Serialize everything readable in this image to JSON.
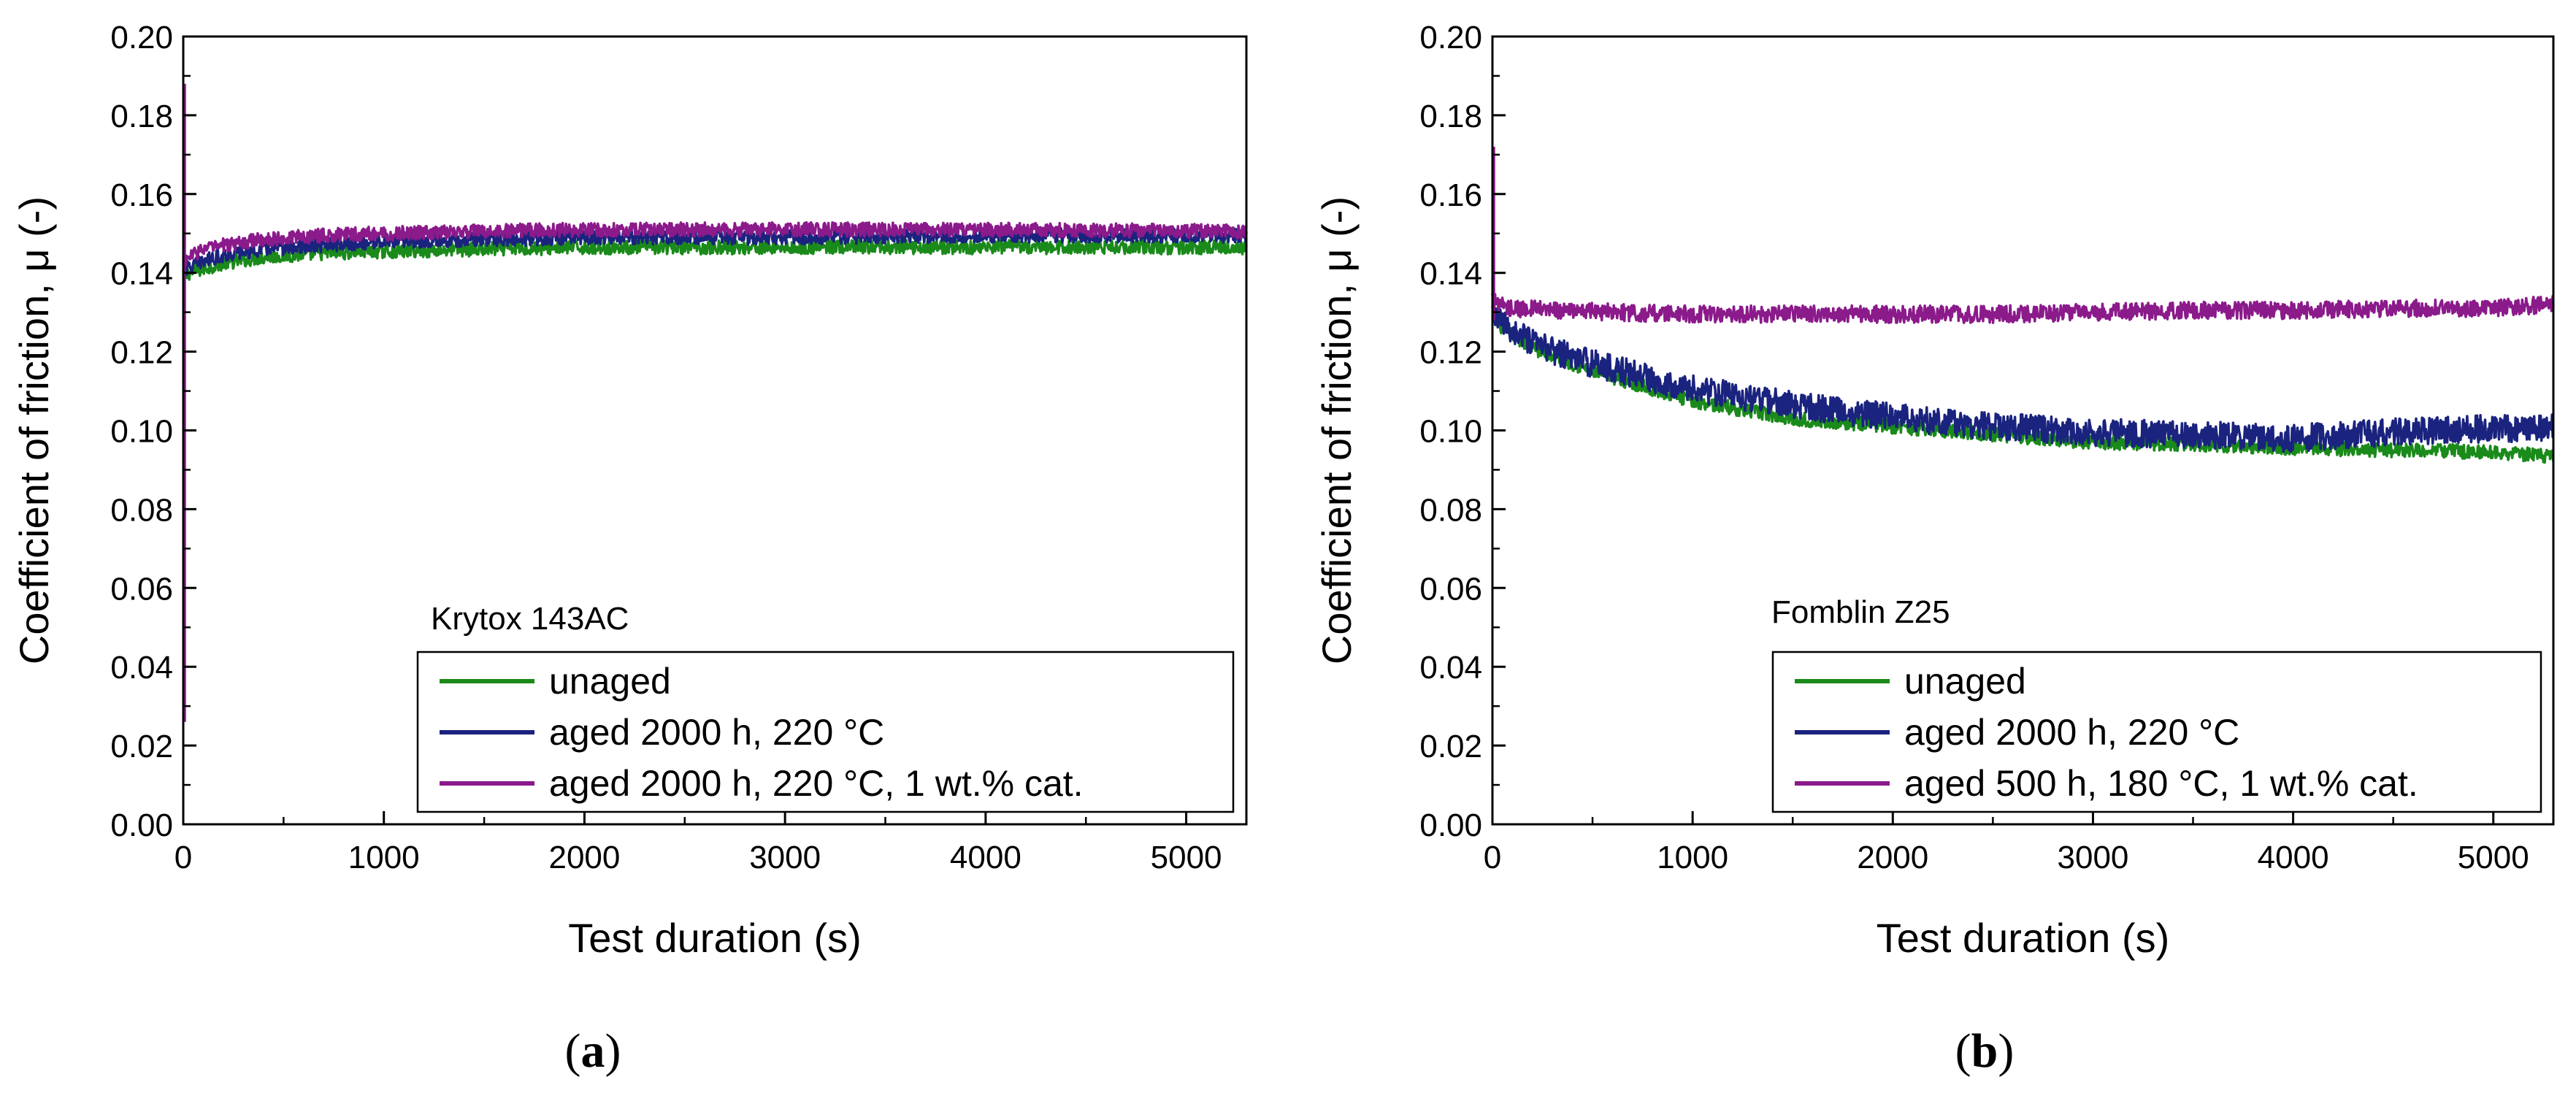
{
  "chart_data": [
    {
      "type": "line",
      "panel_label": "a",
      "annotation": "Krytox 143AC",
      "xlabel": "Test duration (s)",
      "ylabel": "Coefficient of friction, μ (-)",
      "xlim": [
        0,
        5300
      ],
      "ylim": [
        0,
        0.2
      ],
      "xticks": [
        0,
        1000,
        2000,
        3000,
        4000,
        5000
      ],
      "xtick_labels": [
        "0",
        "1000",
        "2000",
        "3000",
        "4000",
        "5000"
      ],
      "yticks": [
        0,
        0.02,
        0.04,
        0.06,
        0.08,
        0.1,
        0.12,
        0.14,
        0.16,
        0.18,
        0.2
      ],
      "ytick_labels": [
        "0.00",
        "0.02",
        "0.04",
        "0.06",
        "0.08",
        "0.10",
        "0.12",
        "0.14",
        "0.16",
        "0.18",
        "0.20"
      ],
      "legend_position": "bottom-right",
      "series": [
        {
          "name": "unaged",
          "color": "#1a8a1a",
          "noise": 0.0018,
          "x": [
            0,
            10,
            30,
            60,
            100,
            200,
            400,
            700,
            1000,
            1500,
            2000,
            3000,
            4000,
            5300
          ],
          "y": [
            0.138,
            0.139,
            0.14,
            0.1405,
            0.141,
            0.1425,
            0.144,
            0.145,
            0.1455,
            0.146,
            0.1465,
            0.1465,
            0.1465,
            0.1465
          ]
        },
        {
          "name": "aged 2000 h, 220 °C",
          "color": "#1a237e",
          "noise": 0.0018,
          "x": [
            0,
            10,
            30,
            60,
            100,
            200,
            400,
            700,
            1000,
            1500,
            2000,
            3000,
            4000,
            5300
          ],
          "y": [
            0.14,
            0.141,
            0.1415,
            0.142,
            0.143,
            0.1445,
            0.146,
            0.147,
            0.148,
            0.1485,
            0.149,
            0.149,
            0.1495,
            0.1495
          ]
        },
        {
          "name": "aged 2000 h, 220 °C, 1 wt.% cat.",
          "color": "#8b1a8b",
          "noise": 0.0018,
          "x": [
            0,
            10,
            30,
            60,
            100,
            200,
            400,
            700,
            1000,
            1500,
            2000,
            3000,
            4000,
            5300
          ],
          "y": [
            0.142,
            0.143,
            0.144,
            0.145,
            0.146,
            0.147,
            0.1485,
            0.1495,
            0.15,
            0.1505,
            0.151,
            0.151,
            0.151,
            0.1505
          ]
        }
      ],
      "start_spike": {
        "color": "#8b1a8b",
        "y_min": 0.026,
        "y_max": 0.188
      }
    },
    {
      "type": "line",
      "panel_label": "b",
      "annotation": "Fomblin Z25",
      "xlabel": "Test duration (s)",
      "ylabel": "Coefficient of friction, μ (-)",
      "xlim": [
        0,
        5300
      ],
      "ylim": [
        0,
        0.2
      ],
      "xticks": [
        0,
        1000,
        2000,
        3000,
        4000,
        5000
      ],
      "xtick_labels": [
        "0",
        "1000",
        "2000",
        "3000",
        "4000",
        "5000"
      ],
      "yticks": [
        0,
        0.02,
        0.04,
        0.06,
        0.08,
        0.1,
        0.12,
        0.14,
        0.16,
        0.18,
        0.2
      ],
      "ytick_labels": [
        "0.00",
        "0.02",
        "0.04",
        "0.06",
        "0.08",
        "0.10",
        "0.12",
        "0.14",
        "0.16",
        "0.18",
        "0.20"
      ],
      "legend_position": "bottom-right",
      "series": [
        {
          "name": "unaged",
          "color": "#1a8a1a",
          "noise": 0.0018,
          "x": [
            0,
            50,
            200,
            500,
            1000,
            1500,
            2000,
            2500,
            3000,
            3500,
            4000,
            4500,
            5000,
            5300
          ],
          "y": [
            0.129,
            0.126,
            0.121,
            0.115,
            0.1075,
            0.103,
            0.101,
            0.099,
            0.097,
            0.0965,
            0.0955,
            0.095,
            0.0945,
            0.0935
          ]
        },
        {
          "name": "aged 2000 h, 220 °C",
          "color": "#1a237e",
          "noise": 0.0035,
          "x": [
            0,
            50,
            200,
            500,
            1000,
            1500,
            2000,
            2500,
            3000,
            3500,
            4000,
            4500,
            5000,
            5300
          ],
          "y": [
            0.13,
            0.127,
            0.122,
            0.117,
            0.1105,
            0.1065,
            0.1035,
            0.101,
            0.0995,
            0.099,
            0.098,
            0.0995,
            0.1005,
            0.1005
          ]
        },
        {
          "name": "aged 500 h, 180 °C, 1 wt.% cat.",
          "color": "#8b1a8b",
          "noise": 0.0022,
          "x": [
            0,
            30,
            100,
            300,
            600,
            1000,
            1500,
            2000,
            2500,
            3000,
            3500,
            4000,
            4500,
            5000,
            5300
          ],
          "y": [
            0.134,
            0.132,
            0.131,
            0.1305,
            0.13,
            0.1295,
            0.1295,
            0.1295,
            0.1295,
            0.13,
            0.1305,
            0.1305,
            0.131,
            0.131,
            0.132
          ]
        }
      ],
      "start_spike": {
        "color": "#8b1a8b",
        "y_min": 0.128,
        "y_max": 0.172
      }
    }
  ]
}
